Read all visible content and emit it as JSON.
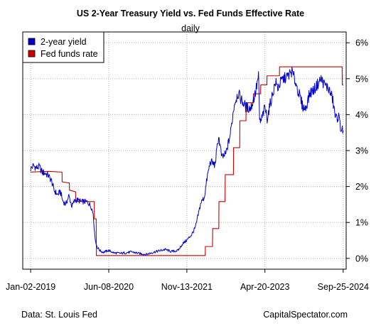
{
  "colors": {
    "yield": "#0000cc",
    "fedfunds": "#cc0000",
    "grid": "#b3b3b3",
    "frame": "#000000"
  },
  "footer": {
    "source": "Data: St. Louis Fed",
    "brand": "CapitalSpectator.com"
  },
  "chart_data": {
    "type": "line",
    "title": "US 2-Year Treasury Yield vs. Fed Funds Effective Rate",
    "subtitle": "daily",
    "xlabel": "",
    "ylabel": "",
    "x_ticks": [
      "Jan-02-2019",
      "Jun-08-2020",
      "Nov-13-2021",
      "Apr-20-2023",
      "Sep-25-2024"
    ],
    "y_ticks": [
      "0%",
      "1%",
      "2%",
      "3%",
      "4%",
      "5%",
      "6%"
    ],
    "xlim": [
      "2018-11-10",
      "2024-10-15"
    ],
    "ylim": [
      -0.3,
      6.3
    ],
    "grid": true,
    "y_axis_side": "right",
    "legend_position": "top-left",
    "series": [
      {
        "name": "2-year yield",
        "values_percent": [
          [
            "2019-01-02",
            2.49
          ],
          [
            "2019-01-20",
            2.58
          ],
          [
            "2019-02-10",
            2.52
          ],
          [
            "2019-03-01",
            2.55
          ],
          [
            "2019-03-20",
            2.4
          ],
          [
            "2019-04-10",
            2.37
          ],
          [
            "2019-05-01",
            2.3
          ],
          [
            "2019-05-20",
            2.17
          ],
          [
            "2019-06-10",
            1.88
          ],
          [
            "2019-07-01",
            1.77
          ],
          [
            "2019-07-20",
            1.86
          ],
          [
            "2019-08-05",
            1.6
          ],
          [
            "2019-08-25",
            1.5
          ],
          [
            "2019-09-15",
            1.74
          ],
          [
            "2019-10-05",
            1.45
          ],
          [
            "2019-10-25",
            1.62
          ],
          [
            "2019-11-15",
            1.62
          ],
          [
            "2019-12-05",
            1.58
          ],
          [
            "2019-12-31",
            1.58
          ],
          [
            "2020-01-20",
            1.56
          ],
          [
            "2020-02-10",
            1.45
          ],
          [
            "2020-02-25",
            1.25
          ],
          [
            "2020-03-05",
            0.7
          ],
          [
            "2020-03-15",
            0.4
          ],
          [
            "2020-03-25",
            0.3
          ],
          [
            "2020-04-10",
            0.22
          ],
          [
            "2020-05-01",
            0.17
          ],
          [
            "2020-06-08",
            0.22
          ],
          [
            "2020-07-15",
            0.15
          ],
          [
            "2020-09-01",
            0.14
          ],
          [
            "2020-11-10",
            0.18
          ],
          [
            "2021-01-05",
            0.13
          ],
          [
            "2021-02-15",
            0.11
          ],
          [
            "2021-04-01",
            0.17
          ],
          [
            "2021-06-20",
            0.25
          ],
          [
            "2021-08-01",
            0.19
          ],
          [
            "2021-09-15",
            0.22
          ],
          [
            "2021-10-15",
            0.4
          ],
          [
            "2021-11-13",
            0.51
          ],
          [
            "2021-12-15",
            0.66
          ],
          [
            "2022-01-10",
            0.87
          ],
          [
            "2022-02-15",
            1.55
          ],
          [
            "2022-03-10",
            1.7
          ],
          [
            "2022-03-31",
            2.3
          ],
          [
            "2022-04-20",
            2.7
          ],
          [
            "2022-05-20",
            2.6
          ],
          [
            "2022-06-14",
            3.4
          ],
          [
            "2022-07-05",
            2.8
          ],
          [
            "2022-08-01",
            2.9
          ],
          [
            "2022-08-31",
            3.45
          ],
          [
            "2022-09-27",
            4.3
          ],
          [
            "2022-10-21",
            4.6
          ],
          [
            "2022-11-15",
            4.4
          ],
          [
            "2022-12-15",
            4.2
          ],
          [
            "2023-01-15",
            4.18
          ],
          [
            "2023-02-15",
            4.6
          ],
          [
            "2023-03-08",
            5.07
          ],
          [
            "2023-03-15",
            3.85
          ],
          [
            "2023-03-24",
            3.8
          ],
          [
            "2023-04-20",
            4.2
          ],
          [
            "2023-05-05",
            3.9
          ],
          [
            "2023-05-31",
            4.4
          ],
          [
            "2023-06-30",
            4.9
          ],
          [
            "2023-07-15",
            4.75
          ],
          [
            "2023-08-15",
            4.98
          ],
          [
            "2023-09-15",
            5.05
          ],
          [
            "2023-10-18",
            5.2
          ],
          [
            "2023-11-15",
            4.85
          ],
          [
            "2023-12-27",
            4.25
          ],
          [
            "2024-01-15",
            4.15
          ],
          [
            "2024-02-15",
            4.6
          ],
          [
            "2024-03-15",
            4.7
          ],
          [
            "2024-04-30",
            5.0
          ],
          [
            "2024-05-20",
            4.85
          ],
          [
            "2024-06-20",
            4.72
          ],
          [
            "2024-07-15",
            4.45
          ],
          [
            "2024-08-05",
            3.9
          ],
          [
            "2024-08-25",
            3.95
          ],
          [
            "2024-09-10",
            3.6
          ],
          [
            "2024-09-25",
            3.55
          ]
        ]
      },
      {
        "name": "Fed funds rate",
        "values_percent": [
          [
            "2019-01-02",
            2.4
          ],
          [
            "2019-03-01",
            2.41
          ],
          [
            "2019-05-01",
            2.42
          ],
          [
            "2019-07-31",
            2.4
          ],
          [
            "2019-08-01",
            2.13
          ],
          [
            "2019-09-18",
            2.1
          ],
          [
            "2019-09-19",
            1.9
          ],
          [
            "2019-10-30",
            1.85
          ],
          [
            "2019-10-31",
            1.58
          ],
          [
            "2020-03-03",
            1.58
          ],
          [
            "2020-03-04",
            1.1
          ],
          [
            "2020-03-16",
            1.1
          ],
          [
            "2020-03-17",
            0.08
          ],
          [
            "2021-12-31",
            0.08
          ],
          [
            "2022-03-16",
            0.08
          ],
          [
            "2022-03-17",
            0.33
          ],
          [
            "2022-05-04",
            0.33
          ],
          [
            "2022-05-05",
            0.83
          ],
          [
            "2022-06-15",
            0.83
          ],
          [
            "2022-06-16",
            1.58
          ],
          [
            "2022-07-27",
            1.58
          ],
          [
            "2022-07-28",
            2.33
          ],
          [
            "2022-09-21",
            2.33
          ],
          [
            "2022-09-22",
            3.08
          ],
          [
            "2022-11-02",
            3.08
          ],
          [
            "2022-11-03",
            3.83
          ],
          [
            "2022-12-14",
            3.83
          ],
          [
            "2022-12-15",
            4.33
          ],
          [
            "2023-02-01",
            4.33
          ],
          [
            "2023-02-02",
            4.58
          ],
          [
            "2023-03-22",
            4.58
          ],
          [
            "2023-03-23",
            4.83
          ],
          [
            "2023-05-03",
            4.83
          ],
          [
            "2023-05-04",
            5.08
          ],
          [
            "2023-07-26",
            5.08
          ],
          [
            "2023-07-27",
            5.33
          ],
          [
            "2024-09-18",
            5.33
          ],
          [
            "2024-09-19",
            4.83
          ],
          [
            "2024-09-25",
            4.83
          ]
        ]
      }
    ]
  }
}
